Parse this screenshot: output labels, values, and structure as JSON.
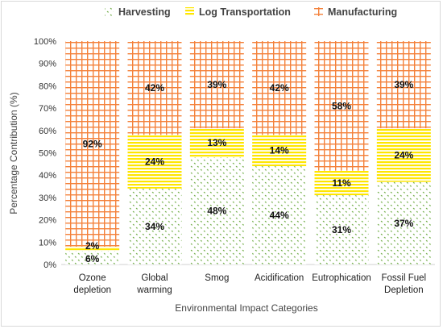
{
  "chart_data": {
    "type": "bar",
    "stacked": true,
    "title": "",
    "xlabel": "Environmental Impact Categories",
    "ylabel": "Percentage Contribution (%)",
    "ylim": [
      0,
      100
    ],
    "yticks": [
      "0%",
      "10%",
      "20%",
      "30%",
      "40%",
      "50%",
      "60%",
      "70%",
      "80%",
      "90%",
      "100%"
    ],
    "categories": [
      [
        "Ozone",
        "depletion"
      ],
      [
        "Global",
        "warming"
      ],
      [
        "Smog"
      ],
      [
        "Acidification"
      ],
      [
        "Eutrophication"
      ],
      [
        "Fossil Fuel",
        "Depletion"
      ]
    ],
    "series": [
      {
        "name": "Harvesting",
        "values": [
          6,
          34,
          48,
          44,
          31,
          37
        ],
        "labels": [
          "6%",
          "34%",
          "48%",
          "44%",
          "31%",
          "37%"
        ]
      },
      {
        "name": "Log Transportation",
        "values": [
          2,
          24,
          13,
          14,
          11,
          24
        ],
        "labels": [
          "2%",
          "24%",
          "13%",
          "14%",
          "11%",
          "24%"
        ]
      },
      {
        "name": "Manufacturing",
        "values": [
          92,
          42,
          39,
          42,
          58,
          39
        ],
        "labels": [
          "92%",
          "42%",
          "39%",
          "42%",
          "58%",
          "39%"
        ]
      }
    ],
    "legend_position": "top",
    "grid": false,
    "colors": {
      "harvesting": "#70ad47",
      "log_transportation": "#ffe600",
      "manufacturing": "#f4813a"
    }
  }
}
